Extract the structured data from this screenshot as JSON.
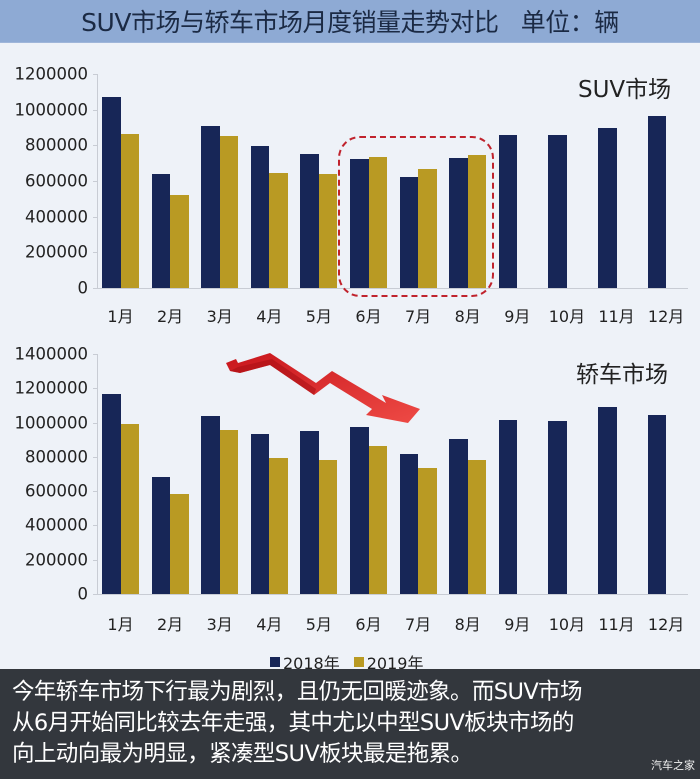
{
  "header": {
    "title": "SUV市场与轿车市场月度销量走势对比",
    "unit": "单位：辆"
  },
  "colors": {
    "series_2018": "#172657",
    "series_2019": "#b99a23",
    "highlight_box": "#c0232d",
    "trend_arrow": "#e2272a",
    "header_bg": "#8eaad4",
    "bottom_panel_bg": "#33373d"
  },
  "legend": {
    "items": [
      {
        "label": "2018年",
        "color": "#172657"
      },
      {
        "label": "2019年",
        "color": "#b99a23"
      }
    ]
  },
  "chart_data": [
    {
      "type": "bar",
      "title": "SUV市场",
      "xlabel": "",
      "ylabel": "",
      "ylim": [
        0,
        1200000
      ],
      "yticks": [
        "1200000",
        "1000000",
        "800000",
        "600000",
        "400000",
        "200000",
        "0"
      ],
      "categories": [
        "1月",
        "2月",
        "3月",
        "4月",
        "5月",
        "6月",
        "7月",
        "8月",
        "9月",
        "10月",
        "11月",
        "12月"
      ],
      "series": [
        {
          "name": "2018年",
          "values": [
            1071000,
            641000,
            908000,
            796000,
            751000,
            725000,
            622000,
            729000,
            860000,
            856000,
            895000,
            963000
          ]
        },
        {
          "name": "2019年",
          "values": [
            865000,
            520000,
            850000,
            645000,
            637000,
            735000,
            665000,
            744000,
            null,
            null,
            null,
            null
          ]
        }
      ],
      "annotations": [
        {
          "type": "dashed-rounded-box",
          "covers": [
            "6月",
            "7月",
            "8月"
          ],
          "color": "#c0232d"
        }
      ],
      "grid": false,
      "legend_position": "bottom"
    },
    {
      "type": "bar",
      "title": "轿车市场",
      "xlabel": "",
      "ylabel": "",
      "ylim": [
        0,
        1400000
      ],
      "yticks": [
        "1400000",
        "1200000",
        "1000000",
        "800000",
        "600000",
        "400000",
        "200000",
        "0"
      ],
      "categories": [
        "1月",
        "2月",
        "3月",
        "4月",
        "5月",
        "6月",
        "7月",
        "8月",
        "9月",
        "10月",
        "11月",
        "12月"
      ],
      "series": [
        {
          "name": "2018年",
          "values": [
            1166000,
            682000,
            1036000,
            935000,
            948000,
            972000,
            818000,
            906000,
            1015000,
            1007000,
            1090000,
            1042000
          ]
        },
        {
          "name": "2019年",
          "values": [
            993000,
            581000,
            958000,
            791000,
            783000,
            863000,
            735000,
            779000,
            null,
            null,
            null,
            null
          ]
        }
      ],
      "annotations": [
        {
          "type": "downward-zigzag-arrow",
          "from": "1月-2月",
          "to": "7月",
          "color": "#e2272a"
        }
      ],
      "grid": false,
      "legend_position": "bottom"
    }
  ],
  "summary": {
    "lines": [
      "今年轿车市场下行最为剧烈，且仍无回暖迹象。而SUV市场",
      "从6月开始同比较去年走强，其中尤以中型SUV板块市场的",
      "向上动向最为明显，紧凑型SUV板块最是拖累。"
    ]
  },
  "watermark": "汽车之家"
}
